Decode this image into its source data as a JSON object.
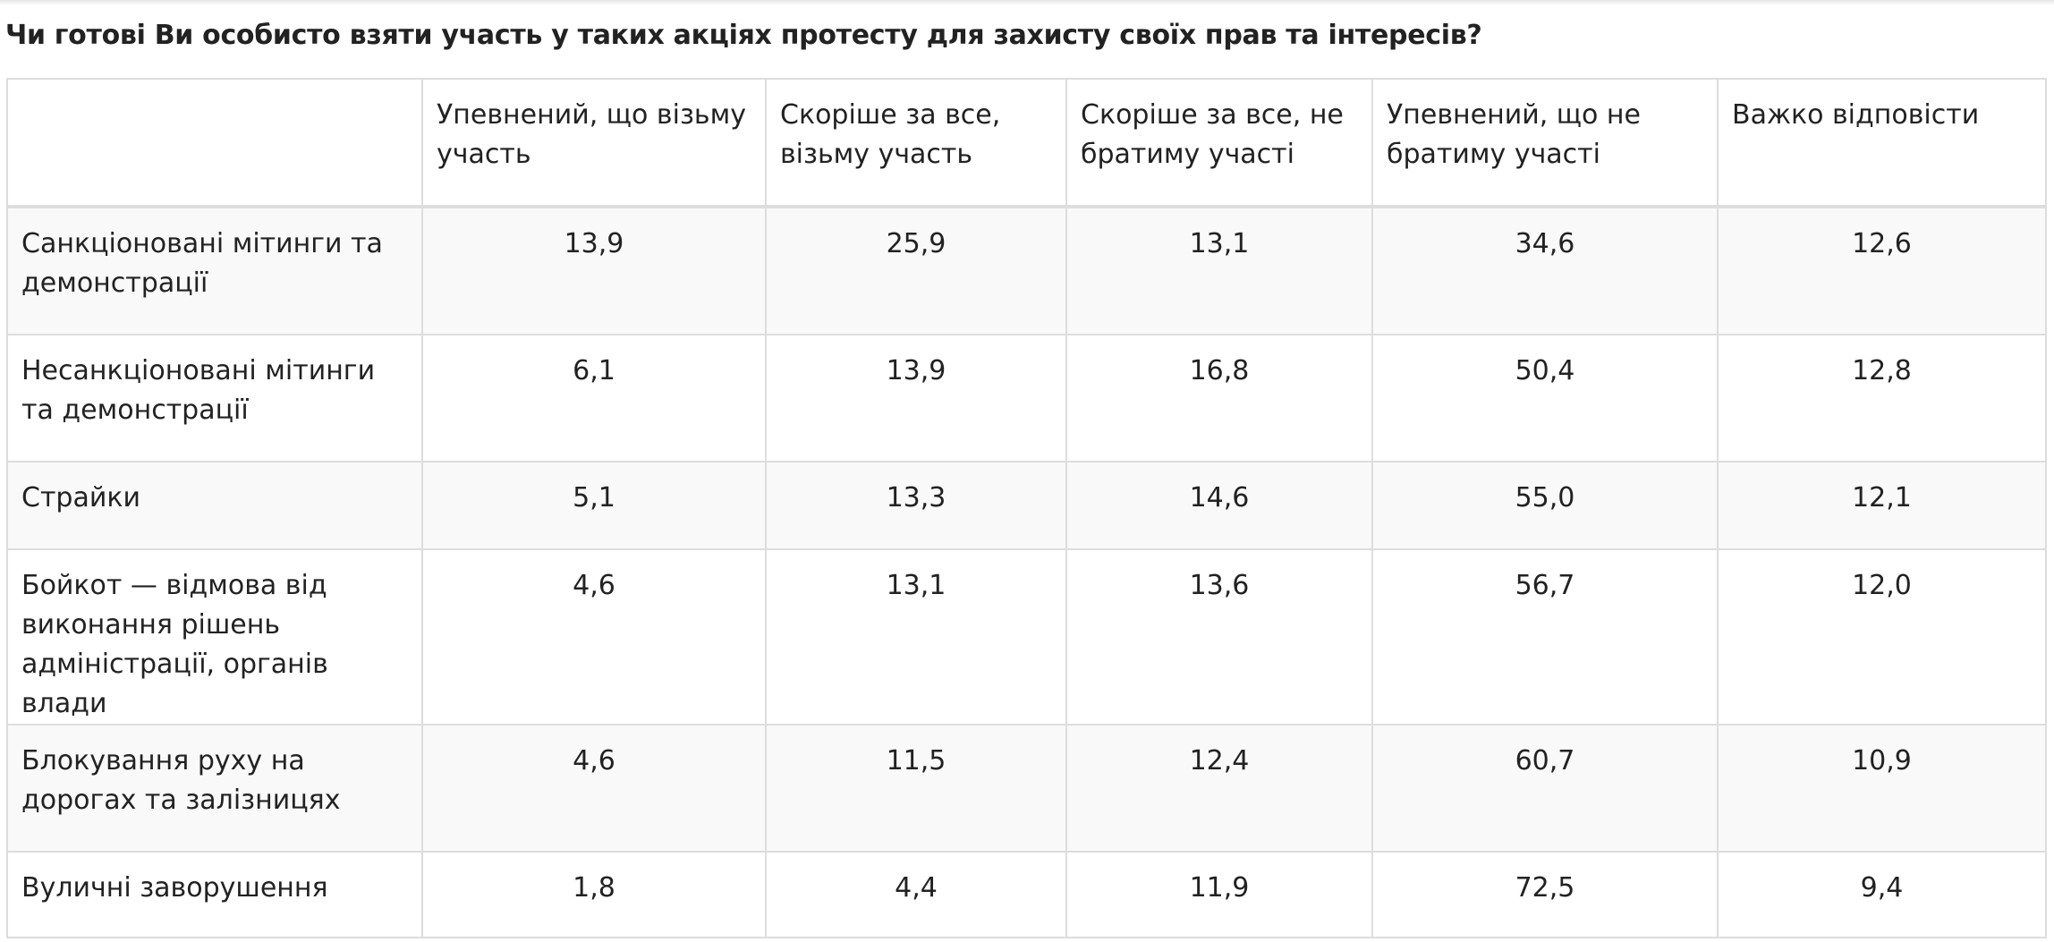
{
  "title": "Чи готові Ви особисто взяти участь у таких акціях протесту для захисту своїх прав та інтересів?",
  "table": {
    "columns": [
      "",
      "Упевнений, що візьму участь",
      "Скоріше за все, візьму участь",
      "Скоріше за все, не братиму участі",
      "Упевнений, що не братиму участі",
      "Важко відповісти"
    ],
    "rows": [
      {
        "label": "Санкціоновані мітинги та демонстрації",
        "values": [
          "13,9",
          "25,9",
          "13,1",
          "34,6",
          "12,6"
        ]
      },
      {
        "label": "Несанкціоновані мітинги та демонстрації",
        "values": [
          "6,1",
          "13,9",
          "16,8",
          "50,4",
          "12,8"
        ]
      },
      {
        "label": "Страйки",
        "values": [
          "5,1",
          "13,3",
          "14,6",
          "55,0",
          "12,1"
        ]
      },
      {
        "label": "Бойкот — відмова від виконання рішень адміністрації, органів влади",
        "values": [
          "4,6",
          "13,1",
          "13,6",
          "56,7",
          "12,0"
        ]
      },
      {
        "label": "Блокування руху на дорогах та залізницях",
        "values": [
          "4,6",
          "11,5",
          "12,4",
          "60,7",
          "10,9"
        ]
      },
      {
        "label": "Вуличні заворушення",
        "values": [
          "1,8",
          "4,4",
          "11,9",
          "72,5",
          "9,4"
        ]
      }
    ]
  }
}
